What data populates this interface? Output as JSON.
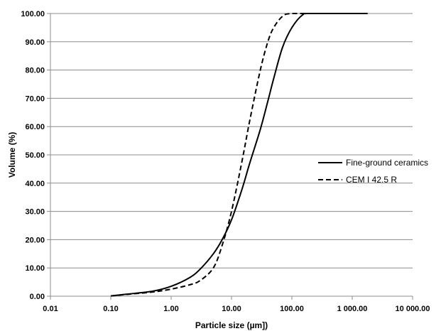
{
  "chart_data": {
    "type": "line",
    "xlabel": "Particle size (µm])",
    "ylabel": "Volume (%)",
    "x_scale": "log",
    "xlim": [
      0.01,
      10000
    ],
    "ylim": [
      0,
      100
    ],
    "grid": "horizontal",
    "legend_position": "right",
    "x_ticks": [
      "0.01",
      "0.10",
      "1.00",
      "10.00",
      "100.00",
      "1 000.00",
      "10 000.00"
    ],
    "y_ticks": [
      "0.00",
      "10.00",
      "20.00",
      "30.00",
      "40.00",
      "50.00",
      "60.00",
      "70.00",
      "80.00",
      "90.00",
      "100.00"
    ],
    "series": [
      {
        "name": "Fine-ground ceramics",
        "style": "solid",
        "color": "#000000",
        "points": [
          [
            0.1,
            0.1
          ],
          [
            0.2,
            0.8
          ],
          [
            0.5,
            1.8
          ],
          [
            1,
            3.5
          ],
          [
            2,
            6.5
          ],
          [
            3,
            9.5
          ],
          [
            5,
            15
          ],
          [
            7,
            20
          ],
          [
            10,
            27
          ],
          [
            15,
            38
          ],
          [
            20,
            47
          ],
          [
            30,
            59
          ],
          [
            40,
            69
          ],
          [
            50,
            77
          ],
          [
            70,
            88
          ],
          [
            100,
            95
          ],
          [
            150,
            99.5
          ],
          [
            200,
            100
          ],
          [
            1800,
            100
          ]
        ]
      },
      {
        "name": "CEM I 42.5 R",
        "style": "dashed",
        "color": "#000000",
        "points": [
          [
            0.1,
            0.1
          ],
          [
            0.2,
            0.7
          ],
          [
            0.5,
            1.5
          ],
          [
            1,
            2.5
          ],
          [
            2,
            4
          ],
          [
            3,
            5.5
          ],
          [
            5,
            10
          ],
          [
            7,
            18
          ],
          [
            10,
            30
          ],
          [
            15,
            48
          ],
          [
            20,
            62
          ],
          [
            30,
            80
          ],
          [
            40,
            90
          ],
          [
            50,
            95
          ],
          [
            70,
            99
          ],
          [
            100,
            100
          ],
          [
            300,
            100
          ]
        ]
      }
    ]
  }
}
